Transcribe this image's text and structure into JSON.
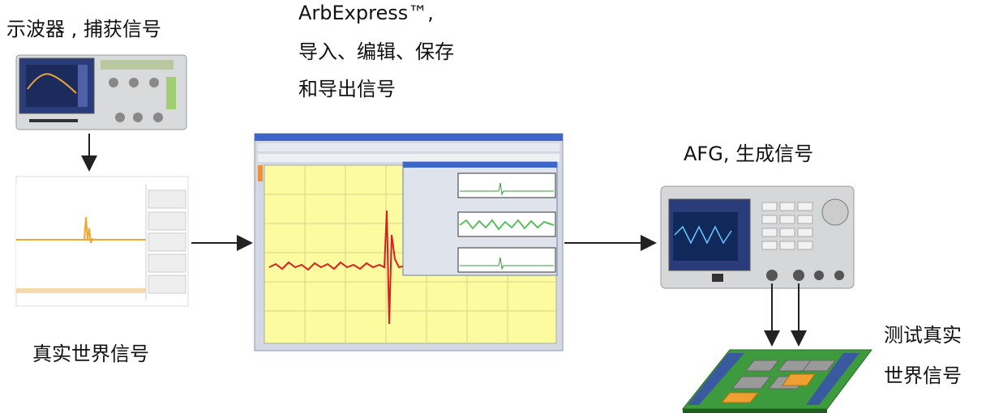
{
  "labels": {
    "oscilloscope": "示波器 , 捕获信号",
    "arbexpress": [
      "ArbExpress™,",
      "导入、编辑、保存",
      "和导出信号"
    ],
    "afg": "AFG, 生成信号",
    "real_world": "真实世界信号",
    "test": [
      "测试真实",
      "世界信号"
    ]
  }
}
